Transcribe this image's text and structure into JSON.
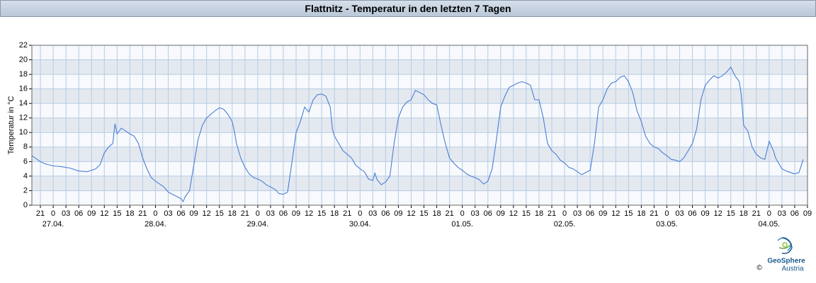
{
  "chart_data": {
    "type": "line",
    "title": "Flattnitz - Temperatur in den letzten 7 Tagen",
    "y_label": "Temperatur in °C",
    "xlim": [
      -5,
      177
    ],
    "ylim": [
      0,
      22
    ],
    "yticks": [
      0,
      2,
      4,
      6,
      8,
      10,
      12,
      14,
      16,
      18,
      20,
      22
    ],
    "xticks": [
      {
        "value": -3,
        "label": "21"
      },
      0,
      {
        "value": 3,
        "label": "03"
      },
      {
        "value": 6,
        "label": "06"
      },
      {
        "value": 9,
        "label": "09"
      },
      12,
      15,
      18,
      21,
      {
        "value": 24,
        "label": "0"
      },
      {
        "value": 27,
        "label": "03"
      },
      {
        "value": 30,
        "label": "06"
      },
      {
        "value": 33,
        "label": "09"
      },
      {
        "value": 36,
        "label": "12"
      },
      {
        "value": 39,
        "label": "15"
      },
      {
        "value": 42,
        "label": "18"
      },
      {
        "value": 45,
        "label": "21"
      },
      {
        "value": 48,
        "label": "0"
      },
      {
        "value": 51,
        "label": "03"
      },
      {
        "value": 54,
        "label": "06"
      },
      {
        "value": 57,
        "label": "09"
      },
      {
        "value": 60,
        "label": "12"
      },
      {
        "value": 63,
        "label": "15"
      },
      {
        "value": 66,
        "label": "18"
      },
      {
        "value": 69,
        "label": "21"
      },
      {
        "value": 72,
        "label": "0"
      },
      {
        "value": 75,
        "label": "03"
      },
      {
        "value": 78,
        "label": "06"
      },
      {
        "value": 81,
        "label": "09"
      },
      {
        "value": 84,
        "label": "12"
      },
      {
        "value": 87,
        "label": "15"
      },
      {
        "value": 90,
        "label": "18"
      },
      {
        "value": 93,
        "label": "21"
      },
      {
        "value": 96,
        "label": "0"
      },
      {
        "value": 99,
        "label": "03"
      },
      {
        "value": 102,
        "label": "06"
      },
      {
        "value": 105,
        "label": "09"
      },
      {
        "value": 108,
        "label": "12"
      },
      {
        "value": 111,
        "label": "15"
      },
      {
        "value": 114,
        "label": "18"
      },
      {
        "value": 117,
        "label": "21"
      },
      {
        "value": 120,
        "label": "0"
      },
      {
        "value": 123,
        "label": "03"
      },
      {
        "value": 126,
        "label": "06"
      },
      {
        "value": 129,
        "label": "09"
      },
      {
        "value": 132,
        "label": "12"
      },
      {
        "value": 135,
        "label": "15"
      },
      {
        "value": 138,
        "label": "18"
      },
      {
        "value": 141,
        "label": "21"
      },
      {
        "value": 144,
        "label": "0"
      },
      {
        "value": 147,
        "label": "03"
      },
      {
        "value": 150,
        "label": "06"
      },
      {
        "value": 153,
        "label": "09"
      },
      {
        "value": 156,
        "label": "12"
      },
      {
        "value": 159,
        "label": "15"
      },
      {
        "value": 162,
        "label": "18"
      },
      {
        "value": 165,
        "label": "21"
      },
      {
        "value": 168,
        "label": "0"
      },
      {
        "value": 171,
        "label": "03"
      },
      {
        "value": 174,
        "label": "06"
      },
      {
        "value": 177,
        "label": "09"
      }
    ],
    "date_labels": [
      {
        "value": 0,
        "label": "27.04."
      },
      {
        "value": 24,
        "label": "28.04."
      },
      {
        "value": 48,
        "label": "29.04."
      },
      {
        "value": 72,
        "label": "30.04."
      },
      {
        "value": 96,
        "label": "01.05."
      },
      {
        "value": 120,
        "label": "02.05."
      },
      {
        "value": 144,
        "label": "03.05."
      },
      {
        "value": 168,
        "label": "04.05."
      }
    ],
    "grid": true,
    "color": "#4a7fd6",
    "x": [
      -5,
      -4,
      -3,
      -2,
      0,
      2,
      4,
      6,
      8,
      10,
      11,
      12,
      13,
      14,
      14.5,
      15,
      16,
      17,
      18,
      19,
      20,
      21,
      22,
      23,
      24,
      25,
      26,
      27,
      28,
      29,
      30,
      30.5,
      31,
      32,
      33,
      34,
      35,
      36,
      37,
      38,
      39,
      40,
      41,
      42,
      42.5,
      43,
      44,
      45,
      46,
      47,
      48,
      49,
      50,
      51,
      52,
      53,
      54,
      55,
      56,
      57,
      58,
      59,
      60,
      61,
      62,
      63,
      64,
      65,
      65.5,
      66,
      67,
      68,
      69,
      70,
      71,
      72,
      73,
      74,
      75,
      75.5,
      76,
      77,
      78,
      79,
      80,
      81,
      82,
      83,
      84,
      85,
      86,
      87,
      88,
      89,
      90,
      91,
      92,
      93,
      94,
      95,
      96,
      97,
      98,
      99,
      100,
      101,
      102,
      103,
      104,
      105,
      106,
      107,
      108,
      109,
      110,
      111,
      112,
      113,
      114,
      115,
      116,
      117,
      118,
      119,
      120,
      121,
      122,
      123,
      124,
      125,
      126,
      127,
      128,
      129,
      130,
      131,
      132,
      133,
      134,
      135,
      136,
      137,
      138,
      139,
      140,
      141,
      142,
      143,
      144,
      145,
      146,
      147,
      148,
      149,
      150,
      151,
      152,
      153,
      154,
      155,
      156,
      157,
      158,
      159,
      160,
      161,
      161.5,
      162,
      163,
      164,
      165,
      166,
      167,
      168,
      169,
      169.5,
      170,
      171,
      172,
      173,
      174,
      175,
      176
    ],
    "values": [
      6.8,
      6.4,
      6.0,
      5.7,
      5.4,
      5.3,
      5.1,
      4.7,
      4.6,
      5.0,
      5.6,
      7.2,
      8.0,
      8.5,
      11.2,
      9.8,
      10.6,
      10.2,
      9.8,
      9.5,
      8.5,
      6.5,
      5.0,
      3.8,
      3.3,
      2.9,
      2.5,
      1.8,
      1.5,
      1.2,
      0.9,
      0.5,
      1.2,
      2.0,
      5.5,
      9.0,
      11.0,
      12.0,
      12.5,
      13.0,
      13.4,
      13.2,
      12.5,
      11.5,
      10.2,
      8.5,
      6.5,
      5.2,
      4.3,
      3.8,
      3.6,
      3.3,
      2.8,
      2.5,
      2.2,
      1.6,
      1.5,
      1.8,
      5.8,
      10.0,
      11.5,
      13.5,
      12.8,
      14.5,
      15.2,
      15.3,
      15.0,
      13.5,
      10.5,
      9.5,
      8.5,
      7.5,
      7.0,
      6.5,
      5.5,
      5.0,
      4.6,
      3.6,
      3.4,
      4.4,
      3.5,
      2.8,
      3.2,
      4.0,
      8.5,
      12.0,
      13.5,
      14.2,
      14.5,
      15.8,
      15.5,
      15.2,
      14.5,
      14.0,
      13.8,
      11.0,
      8.5,
      6.5,
      5.8,
      5.2,
      4.8,
      4.3,
      4.0,
      3.8,
      3.5,
      2.9,
      3.3,
      5.0,
      9.0,
      13.5,
      15.0,
      16.2,
      16.5,
      16.8,
      17.0,
      16.8,
      16.5,
      14.5,
      14.5,
      12.0,
      8.5,
      7.5,
      7.0,
      6.2,
      5.8,
      5.2,
      5.0,
      4.6,
      4.2,
      4.5,
      4.8,
      8.5,
      13.5,
      14.5,
      16.0,
      16.8,
      17.0,
      17.6,
      17.8,
      17.0,
      15.5,
      13.0,
      11.5,
      9.5,
      8.5,
      8.0,
      7.8,
      7.2,
      6.8,
      6.3,
      6.2,
      6.0,
      6.5,
      7.5,
      8.5,
      10.5,
      14.5,
      16.5,
      17.2,
      17.8,
      17.5,
      17.8,
      18.3,
      19.0,
      17.8,
      17.0,
      15.0,
      11.0,
      10.2,
      8.0,
      7.0,
      6.5,
      6.3,
      8.8,
      7.5,
      6.5,
      6.0,
      5.0,
      4.7,
      4.5,
      4.3,
      4.5,
      6.3
    ]
  },
  "logo": {
    "name": "GeoSphere",
    "sub": "Austria",
    "copyright": "©"
  }
}
